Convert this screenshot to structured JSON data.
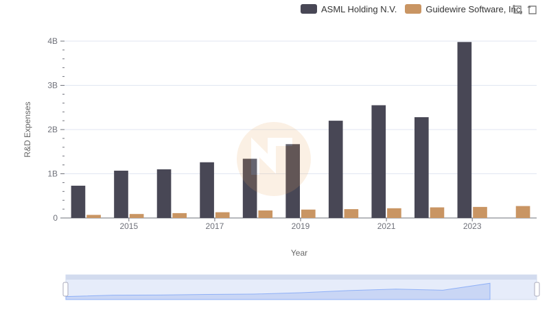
{
  "legend": {
    "items": [
      {
        "label": "ASML Holding N.V.",
        "color": "#484755"
      },
      {
        "label": "Guidewire Software, Inc.",
        "color": "#c99563"
      }
    ]
  },
  "toolbox": {
    "icons": [
      "restore-zoom-icon",
      "reset-icon"
    ]
  },
  "chart_data": {
    "type": "bar",
    "title": "",
    "xlabel": "Year",
    "ylabel": "R&D Expenses",
    "x_tick_labels": [
      "2015",
      "2017",
      "2019",
      "2021",
      "2023"
    ],
    "y_tick_labels": [
      "0",
      "1B",
      "2B",
      "3B",
      "4B"
    ],
    "ylim": [
      0,
      4000000000
    ],
    "grid": true,
    "legend_position": "top-right",
    "categories": [
      "2014",
      "2015",
      "2016",
      "2017",
      "2018",
      "2019",
      "2020",
      "2021",
      "2022",
      "2023",
      "2024"
    ],
    "series": [
      {
        "name": "ASML Holding N.V.",
        "color": "#484755",
        "values": [
          730000000,
          1070000000,
          1100000000,
          1260000000,
          1340000000,
          1670000000,
          2200000000,
          2550000000,
          2280000000,
          3980000000,
          null
        ]
      },
      {
        "name": "Guidewire Software, Inc.",
        "color": "#c99563",
        "values": [
          70000000,
          90000000,
          110000000,
          130000000,
          170000000,
          190000000,
          200000000,
          220000000,
          240000000,
          250000000,
          270000000
        ]
      }
    ]
  }
}
